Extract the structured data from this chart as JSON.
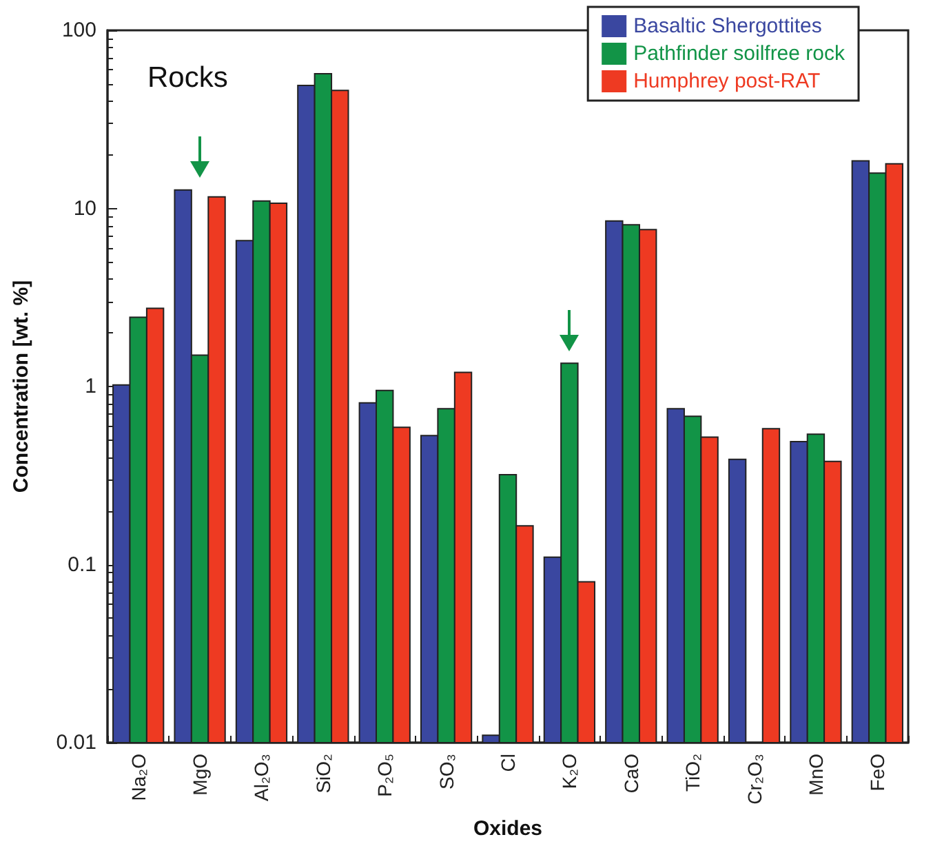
{
  "chart_data": {
    "type": "bar",
    "annotations": [
      "Rocks"
    ],
    "xlabel": "Oxides",
    "ylabel": "Concentration [wt. %]",
    "categories": [
      "Na₂O",
      "MgO",
      "Al₂O₃",
      "SiO₂",
      "P₂O₅",
      "SO₃",
      "Cl",
      "K₂O",
      "CaO",
      "TiO₂",
      "Cr₂O₃",
      "MnO",
      "FeO"
    ],
    "series": [
      {
        "name": "Basaltic Shergottites",
        "color": "#3a47a0",
        "values": [
          1.02,
          12.7,
          6.6,
          49,
          0.81,
          0.53,
          0.011,
          0.11,
          8.5,
          0.75,
          0.39,
          0.49,
          18.5
        ]
      },
      {
        "name": "Pathfinder soilfree rock",
        "color": "#129447",
        "values": [
          2.45,
          1.5,
          11,
          57,
          0.95,
          0.75,
          0.32,
          1.35,
          8.1,
          0.68,
          null,
          0.54,
          15.8
        ]
      },
      {
        "name": "Humphrey post-RAT",
        "color": "#ee3a22",
        "values": [
          2.75,
          11.6,
          10.7,
          46,
          0.59,
          1.2,
          0.165,
          0.08,
          7.6,
          0.52,
          0.58,
          0.38,
          17.8
        ]
      }
    ],
    "ylim": [
      0.01,
      100
    ],
    "yticks": [
      0.01,
      0.1,
      1,
      10,
      100
    ],
    "log": true,
    "grid": false,
    "legend": "top right"
  }
}
